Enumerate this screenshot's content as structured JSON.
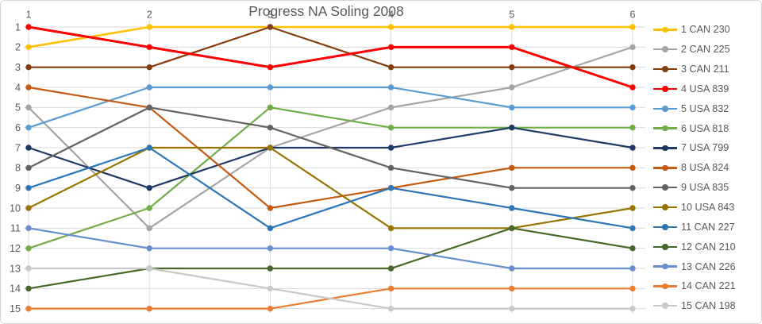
{
  "title": "Progress NA Soling 2008",
  "text_color": "#595959",
  "gridline_color": "#dadada",
  "chart_data": {
    "type": "line",
    "title": "Progress NA Soling 2008",
    "xlabel": "",
    "ylabel": "",
    "x": [
      1,
      2,
      3,
      4,
      5,
      6
    ],
    "x_ticks": [
      "1",
      "2",
      "3",
      "4",
      "5",
      "6"
    ],
    "x_axis_position": "top",
    "y_ticks": [
      "1",
      "2",
      "3",
      "4",
      "5",
      "6",
      "7",
      "8",
      "9",
      "10",
      "11",
      "12",
      "13",
      "14",
      "15"
    ],
    "ylim": [
      1,
      15
    ],
    "y_inverted": true,
    "grid": true,
    "legend_position": "right",
    "series": [
      {
        "name": "1 CAN 230",
        "color": "#FFC000",
        "line_width": 2.6,
        "values": [
          2,
          1,
          1,
          1,
          1,
          1
        ]
      },
      {
        "name": "2 CAN 225",
        "color": "#A5A5A5",
        "line_width": 2.2,
        "values": [
          5,
          11,
          7,
          5,
          4,
          2
        ]
      },
      {
        "name": "3 CAN 211",
        "color": "#843C0C",
        "line_width": 2.2,
        "values": [
          3,
          3,
          1,
          3,
          3,
          3
        ]
      },
      {
        "name": "4 USA 839",
        "color": "#FF0000",
        "line_width": 3.0,
        "values": [
          1,
          2,
          3,
          2,
          2,
          4
        ]
      },
      {
        "name": "5 USA 832",
        "color": "#5B9BD5",
        "line_width": 2.2,
        "values": [
          6,
          4,
          4,
          4,
          5,
          5
        ]
      },
      {
        "name": "6 USA 818",
        "color": "#70AD47",
        "line_width": 2.2,
        "values": [
          12,
          10,
          5,
          6,
          6,
          6
        ]
      },
      {
        "name": "7 USA 799",
        "color": "#1F3864",
        "line_width": 2.2,
        "values": [
          7,
          9,
          7,
          7,
          6,
          7
        ]
      },
      {
        "name": "8 USA 824",
        "color": "#C55A11",
        "line_width": 2.2,
        "values": [
          4,
          5,
          10,
          9,
          8,
          8
        ]
      },
      {
        "name": "9 USA 835",
        "color": "#636363",
        "line_width": 2.2,
        "values": [
          8,
          5,
          6,
          8,
          9,
          9
        ]
      },
      {
        "name": "10 USA 843",
        "color": "#997300",
        "line_width": 2.2,
        "values": [
          10,
          7,
          7,
          11,
          11,
          10
        ]
      },
      {
        "name": "11 CAN 227",
        "color": "#2E75B6",
        "line_width": 2.2,
        "values": [
          9,
          7,
          11,
          9,
          10,
          11
        ]
      },
      {
        "name": "12 CAN 210",
        "color": "#44682A",
        "line_width": 2.2,
        "values": [
          14,
          13,
          13,
          13,
          11,
          12
        ]
      },
      {
        "name": "13 CAN 226",
        "color": "#698ED0",
        "line_width": 2.2,
        "values": [
          11,
          12,
          12,
          12,
          13,
          13
        ]
      },
      {
        "name": "14 CAN 221",
        "color": "#ED7D31",
        "line_width": 2.2,
        "values": [
          15,
          15,
          15,
          14,
          14,
          14
        ]
      },
      {
        "name": "15 CAN 198",
        "color": "#C9C9C9",
        "line_width": 2.2,
        "values": [
          13,
          13,
          14,
          15,
          15,
          15
        ]
      }
    ]
  }
}
